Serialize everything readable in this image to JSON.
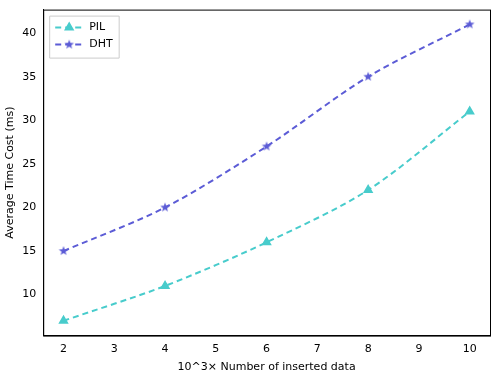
{
  "chart_data": {
    "type": "line",
    "x_label": "10^3× Number of inserted data",
    "y_label": "Average Time Cost (ms)",
    "x": [
      2,
      4,
      6,
      8,
      10
    ],
    "series": [
      {
        "name": "PIL",
        "color": "#48cccc",
        "marker": "triangle",
        "line_style": "dashed",
        "values": [
          7,
          11,
          16,
          22,
          31
        ]
      },
      {
        "name": "DHT",
        "color": "#5c5cd6",
        "marker": "star",
        "line_style": "dashed",
        "values": [
          15,
          20,
          27,
          35,
          41
        ]
      }
    ],
    "xlim": [
      1.6,
      10.4
    ],
    "xticks": [
      2,
      3,
      4,
      5,
      6,
      7,
      8,
      9,
      10
    ],
    "ylim": [
      5.3,
      42.7
    ],
    "yticks": [
      10,
      15,
      20,
      25,
      30,
      35,
      40
    ],
    "grid": false,
    "legend": "upper left"
  }
}
